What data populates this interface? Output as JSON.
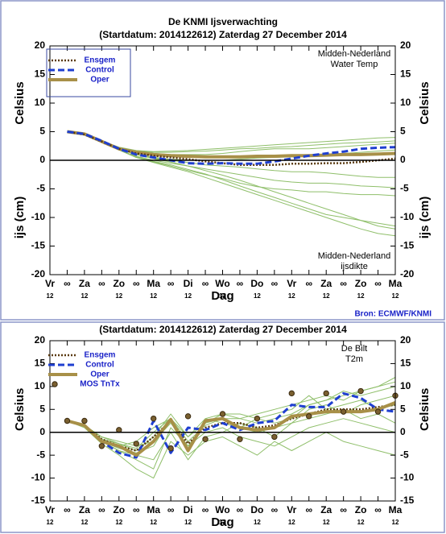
{
  "chart_data": [
    {
      "type": "line",
      "title": "De KNMI Ijsverwachting",
      "subtitle": "(Startdatum: 2014122612)   Zaterdag 27 December 2014",
      "annotation_top": [
        "Midden-Nederland",
        "Water Temp"
      ],
      "annotation_bottom": [
        "Midden-Nederland",
        "ijsdikte"
      ],
      "ylabel": "Celsius",
      "ylabel2": "ijs (cm)",
      "xlabel": "Dag",
      "source": "Bron: ECMWF/KNMI",
      "xlim": [
        0,
        240
      ],
      "xticks": [
        {
          "value": 0,
          "label": "Vr"
        },
        {
          "value": 12,
          "label": "∞"
        },
        {
          "value": 24,
          "label": "Za"
        },
        {
          "value": 36,
          "label": "∞"
        },
        {
          "value": 48,
          "label": "Zo"
        },
        {
          "value": 60,
          "label": "∞"
        },
        {
          "value": 72,
          "label": "Ma"
        },
        {
          "value": 84,
          "label": "∞"
        },
        {
          "value": 96,
          "label": "Di"
        },
        {
          "value": 108,
          "label": "∞"
        },
        {
          "value": 120,
          "label": "Wo"
        },
        {
          "value": 132,
          "label": "∞"
        },
        {
          "value": 144,
          "label": "Do"
        },
        {
          "value": 156,
          "label": "∞"
        },
        {
          "value": 168,
          "label": "Vr"
        },
        {
          "value": 180,
          "label": "∞"
        },
        {
          "value": 192,
          "label": "Za"
        },
        {
          "value": 204,
          "label": "∞"
        },
        {
          "value": 216,
          "label": "Zo"
        },
        {
          "value": 228,
          "label": "∞"
        },
        {
          "value": 240,
          "label": "Ma"
        }
      ],
      "xtick_hours": [
        "12",
        "12",
        "12",
        "12",
        "12",
        "12",
        "12",
        "12",
        "12",
        "12",
        "12"
      ],
      "ylim": [
        -20,
        20
      ],
      "yticks": [
        -20,
        -15,
        -10,
        -5,
        0,
        5,
        10,
        15,
        20
      ],
      "legend_box": true,
      "x": [
        12,
        24,
        36,
        48,
        60,
        72,
        84,
        96,
        108,
        120,
        132,
        144,
        156,
        168,
        180,
        192,
        204,
        216,
        228,
        240
      ],
      "series": [
        {
          "color": "#8fbf6a",
          "style": "member",
          "values": [
            5,
            4.6,
            3.4,
            2.2,
            1.6,
            1.4,
            1.4,
            1.5,
            1.6,
            1.8,
            2,
            2.1,
            2.3,
            2.4,
            2.6,
            2.8,
            3,
            3.1,
            3.2,
            3.4
          ]
        },
        {
          "color": "#8fbf6a",
          "style": "member",
          "values": [
            5,
            4.6,
            3.3,
            2,
            1,
            0.4,
            0,
            -0.4,
            -0.8,
            -1,
            -1.2,
            -1.5,
            -1.8,
            -2,
            -2,
            -2.2,
            -2.5,
            -2.8,
            -3,
            -3
          ]
        },
        {
          "color": "#8fbf6a",
          "style": "member",
          "values": [
            5,
            4.5,
            3.2,
            1.8,
            0.5,
            -0.3,
            -1,
            -1.8,
            -2.5,
            -3.2,
            -4,
            -4.6,
            -5,
            -5.2,
            -5.5,
            -5.5,
            -5.8,
            -6,
            -6,
            -6.2
          ]
        },
        {
          "color": "#8fbf6a",
          "style": "member",
          "values": [
            5,
            4.5,
            3.2,
            1.8,
            0.6,
            -0.2,
            -0.8,
            -1.6,
            -2.4,
            -3.4,
            -4.5,
            -5.5,
            -6.5,
            -7.5,
            -8.5,
            -9.5,
            -10,
            -10.5,
            -11,
            -11.5
          ]
        },
        {
          "color": "#8fbf6a",
          "style": "member",
          "values": [
            5,
            4.6,
            3.3,
            2,
            1,
            0.3,
            -0.3,
            -1,
            -1.8,
            -2.6,
            -3.5,
            -4.5,
            -5.5,
            -6.5,
            -7.5,
            -8.5,
            -9.5,
            -10.5,
            -11.5,
            -12
          ]
        },
        {
          "color": "#8fbf6a",
          "style": "member",
          "values": [
            5,
            4.6,
            3.4,
            2.2,
            1.5,
            1.2,
            1,
            1,
            1,
            1.2,
            1.5,
            1.8,
            2,
            2,
            2,
            2.2,
            2.4,
            2.6,
            2.8,
            3
          ]
        },
        {
          "color": "#8fbf6a",
          "style": "member",
          "values": [
            5,
            4.6,
            3.3,
            2,
            1,
            0.5,
            0.2,
            0,
            0,
            0,
            0.2,
            0.4,
            0.5,
            0.6,
            0.8,
            1,
            1.2,
            1.4,
            1.6,
            1.8
          ]
        },
        {
          "color": "#8fbf6a",
          "style": "member",
          "values": [
            5,
            4.5,
            3.2,
            1.8,
            0.7,
            0,
            -0.5,
            -1,
            -1.5,
            -2,
            -2.5,
            -3,
            -3.5,
            -3.8,
            -4,
            -4,
            -4.2,
            -4.5,
            -4.6,
            -4.8
          ]
        },
        {
          "color": "#8fbf6a",
          "style": "member",
          "values": [
            5,
            4.5,
            3.2,
            1.8,
            0.5,
            -0.4,
            -1.2,
            -2,
            -3,
            -4,
            -5,
            -6,
            -7,
            -8,
            -9,
            -10,
            -11,
            -12,
            -12.8,
            -13.2
          ]
        },
        {
          "color": "#8fbf6a",
          "style": "member",
          "values": [
            5,
            4.6,
            3.4,
            2.3,
            1.7,
            1.5,
            1.6,
            1.7,
            1.9,
            2.1,
            2.3,
            2.5,
            2.7,
            2.9,
            3.1,
            3.3,
            3.5,
            3.7,
            3.9,
            4
          ]
        },
        {
          "name": "Oper",
          "color": "#a89048",
          "style": "thick",
          "values": [
            5,
            4.6,
            3.3,
            2,
            1.4,
            1,
            0.8,
            0.7,
            0.6,
            0.6,
            0.6,
            0.7,
            0.7,
            0.8,
            0.8,
            0.9,
            1,
            1,
            1.1,
            1.2
          ]
        },
        {
          "name": "Ensgem",
          "color": "#5a3a10",
          "style": "dotted",
          "values": [
            5,
            4.5,
            3.3,
            2,
            1.2,
            0.8,
            0.5,
            0.2,
            -0.2,
            -0.5,
            -0.8,
            -0.8,
            -0.8,
            -0.6,
            -0.6,
            -0.5,
            -0.5,
            -0.3,
            0,
            0.3
          ]
        },
        {
          "name": "Control",
          "color": "#1f3fd0",
          "style": "dashed",
          "values": [
            5,
            4.6,
            3.4,
            2,
            1,
            0.5,
            0,
            -0.5,
            -0.6,
            -0.5,
            -0.6,
            -0.6,
            -0.2,
            0.3,
            0.8,
            1.2,
            1.5,
            2,
            2.2,
            2.3
          ]
        }
      ]
    },
    {
      "type": "line",
      "subtitle": "(Startdatum: 2014122612)   Zaterdag 27 December 2014",
      "annotation_top": [
        "De Bilt",
        "T2m"
      ],
      "ylabel": "Celsius",
      "xlabel": "Dag",
      "source": "Bron: ECMWF/KNMI",
      "xlim": [
        0,
        240
      ],
      "xticks": [
        {
          "value": 0,
          "label": "Vr"
        },
        {
          "value": 12,
          "label": "∞"
        },
        {
          "value": 24,
          "label": "Za"
        },
        {
          "value": 36,
          "label": "∞"
        },
        {
          "value": 48,
          "label": "Zo"
        },
        {
          "value": 60,
          "label": "∞"
        },
        {
          "value": 72,
          "label": "Ma"
        },
        {
          "value": 84,
          "label": "∞"
        },
        {
          "value": 96,
          "label": "Di"
        },
        {
          "value": 108,
          "label": "∞"
        },
        {
          "value": 120,
          "label": "Wo"
        },
        {
          "value": 132,
          "label": "∞"
        },
        {
          "value": 144,
          "label": "Do"
        },
        {
          "value": 156,
          "label": "∞"
        },
        {
          "value": 168,
          "label": "Vr"
        },
        {
          "value": 180,
          "label": "∞"
        },
        {
          "value": 192,
          "label": "Za"
        },
        {
          "value": 204,
          "label": "∞"
        },
        {
          "value": 216,
          "label": "Zo"
        },
        {
          "value": 228,
          "label": "∞"
        },
        {
          "value": 240,
          "label": "Ma"
        }
      ],
      "xtick_hours": [
        "12",
        "12",
        "12",
        "12",
        "12",
        "12",
        "12",
        "12",
        "12",
        "12",
        "12"
      ],
      "ylim": [
        -15,
        20
      ],
      "yticks": [
        -15,
        -10,
        -5,
        0,
        5,
        10,
        15,
        20
      ],
      "legend_box": false,
      "x": [
        12,
        24,
        36,
        48,
        60,
        72,
        84,
        96,
        108,
        120,
        132,
        144,
        156,
        168,
        180,
        192,
        204,
        216,
        228,
        240
      ],
      "series": [
        {
          "color": "#8fbf6a",
          "style": "member",
          "values": [
            2.5,
            1.5,
            -1,
            -2.5,
            -3.5,
            0,
            3,
            -2,
            1.5,
            3,
            3,
            2,
            3,
            4,
            6,
            7,
            8,
            9,
            10,
            11
          ]
        },
        {
          "color": "#8fbf6a",
          "style": "member",
          "values": [
            2.5,
            1.5,
            -2,
            -4,
            -6,
            -8,
            1,
            -3,
            0,
            1,
            -1,
            -2,
            -3,
            -1,
            1,
            2,
            3,
            2,
            1,
            0
          ]
        },
        {
          "color": "#8fbf6a",
          "style": "member",
          "values": [
            2.5,
            1.5,
            -1.5,
            -3,
            -2,
            1,
            3,
            -1,
            2,
            4,
            3,
            4,
            5,
            6,
            7,
            8,
            7,
            9,
            10,
            12
          ]
        },
        {
          "color": "#8fbf6a",
          "style": "member",
          "values": [
            2.5,
            1,
            -2.5,
            -5,
            -8,
            -10,
            -2,
            -5,
            -2,
            -1,
            -3,
            -5,
            -2,
            -4,
            -2,
            0,
            -2,
            -3,
            -4,
            -5
          ]
        },
        {
          "color": "#8fbf6a",
          "style": "member",
          "values": [
            2.5,
            1.5,
            -1,
            -2,
            -3,
            -2,
            2,
            -3,
            2,
            3,
            1,
            0,
            1,
            2,
            5,
            6,
            4,
            6,
            7,
            8
          ]
        },
        {
          "color": "#8fbf6a",
          "style": "member",
          "values": [
            2.5,
            1.5,
            -2,
            -3.5,
            -4.5,
            -3,
            3,
            -4,
            3,
            2,
            1,
            3,
            4,
            5,
            8,
            5,
            6,
            7,
            5,
            6
          ]
        },
        {
          "color": "#8fbf6a",
          "style": "member",
          "values": [
            2.5,
            1.5,
            -2,
            -4,
            -5,
            -6,
            0,
            -6,
            -1,
            0,
            2,
            1,
            -1,
            2,
            3,
            4,
            5,
            3,
            4,
            2
          ]
        },
        {
          "color": "#8fbf6a",
          "style": "member",
          "values": [
            2.5,
            1.5,
            -1.5,
            -2.5,
            -4,
            -1,
            4,
            -1,
            3,
            4,
            4,
            3,
            2,
            3,
            6,
            7,
            9,
            8,
            9,
            10
          ]
        },
        {
          "name": "Ensgem",
          "color": "#5a3a10",
          "style": "dotted",
          "values": [
            2.5,
            1.5,
            -1.5,
            -3,
            -4,
            -1,
            2.5,
            -2.5,
            1,
            2,
            2,
            1,
            1.5,
            3,
            4,
            5,
            5,
            5,
            5.5,
            6
          ]
        },
        {
          "name": "Control",
          "color": "#1f3fd0",
          "style": "dashed",
          "values": [
            2.5,
            1.5,
            -2,
            -4.5,
            -5.5,
            2.5,
            -4.5,
            1,
            0.5,
            2,
            0.5,
            2,
            2.5,
            6,
            5.5,
            5.5,
            8.5,
            7.5,
            5,
            4.5
          ]
        },
        {
          "name": "Oper",
          "color": "#a89048",
          "style": "thick",
          "values": [
            2.5,
            1.5,
            -2,
            -3,
            -5,
            -2,
            2.8,
            -4,
            2.5,
            3,
            1,
            0.5,
            1,
            3.5,
            4,
            4.5,
            4.5,
            4.5,
            5,
            6.5
          ]
        },
        {
          "name": "MOS TnTx",
          "color": "#7a6030",
          "style": "dots",
          "values": [
            2.5,
            2.5,
            -3,
            0.5,
            -2.5,
            3,
            -3.5,
            3.5,
            -1.5,
            4,
            -1.5,
            3,
            -1,
            8.5,
            3.5,
            8.5,
            4.5,
            9,
            4.5,
            8
          ]
        }
      ]
    }
  ]
}
